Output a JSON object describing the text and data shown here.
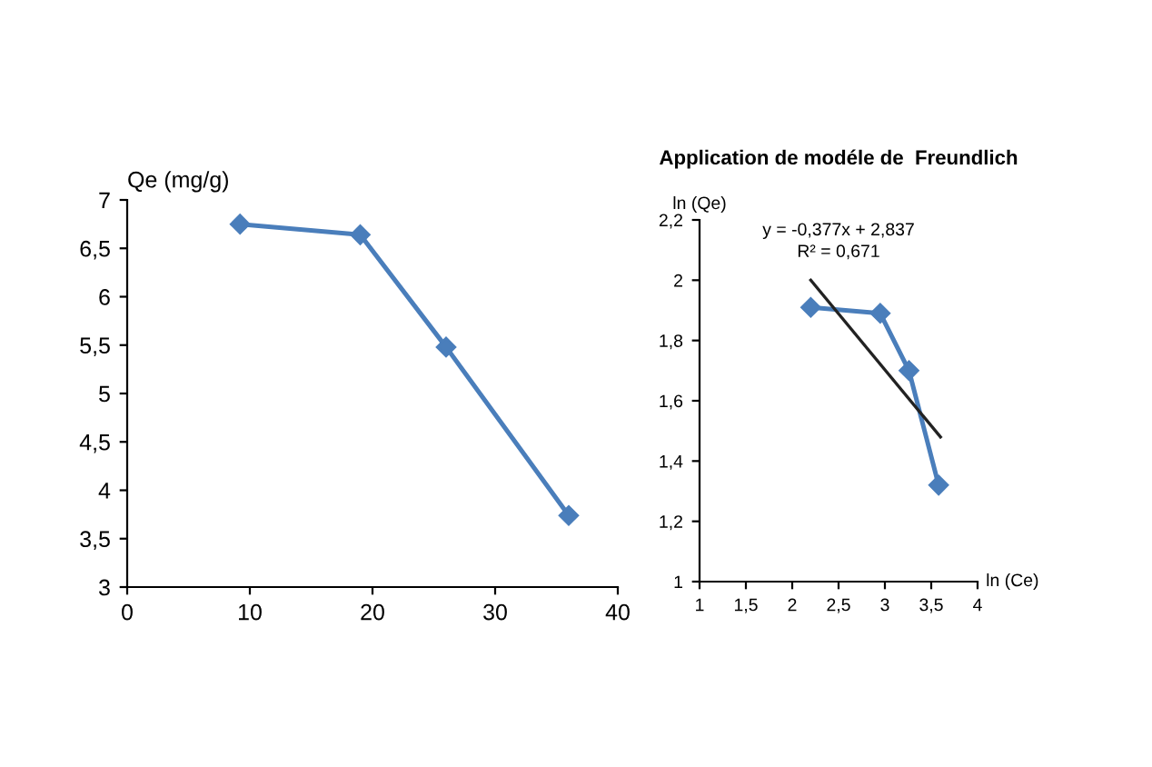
{
  "chart_data": [
    {
      "type": "line",
      "ylabel": "Qe (mg/g)",
      "marker": "diamond",
      "grid": false,
      "legend": false,
      "series": [
        {
          "color": "#4a7ebb",
          "x": [
            9.2,
            19,
            26,
            36
          ],
          "values": [
            6.75,
            6.64,
            5.48,
            3.74
          ]
        }
      ],
      "xlim": [
        0,
        40
      ],
      "xticks": [
        0,
        10,
        20,
        30,
        40
      ],
      "ylim": [
        3,
        7
      ],
      "yticks": [
        3,
        {
          "value": 3.5,
          "label": "3,5"
        },
        4,
        {
          "value": 4.5,
          "label": "4,5"
        },
        5,
        {
          "value": 5.5,
          "label": "5,5"
        },
        6,
        {
          "value": 6.5,
          "label": "6,5"
        },
        7
      ]
    },
    {
      "type": "line",
      "title": "Application de modéle de  Freundlich",
      "ylabel": "ln (Qe)",
      "xlabel": "ln (Ce)",
      "grid": false,
      "legend": false,
      "series": [
        {
          "color": "#4a7ebb",
          "marker": "diamond",
          "x": [
            2.2,
            2.95,
            3.26,
            3.58
          ],
          "values": [
            1.91,
            1.89,
            1.7,
            1.32
          ]
        },
        {
          "color": "#222222",
          "marker": "none",
          "x": [
            2.2,
            3.6
          ],
          "values": [
            2.0,
            1.48
          ]
        }
      ],
      "annotations": [
        "y = -0,377x + 2,837",
        "R² = 0,671"
      ],
      "xlim": [
        1,
        4
      ],
      "xticks": [
        1,
        {
          "value": 1.5,
          "label": "1,5"
        },
        2,
        {
          "value": 2.5,
          "label": "2,5"
        },
        3,
        {
          "value": 3.5,
          "label": "3,5"
        },
        4
      ],
      "ylim": [
        1,
        2.2
      ],
      "yticks": [
        1,
        {
          "value": 1.2,
          "label": "1,2"
        },
        {
          "value": 1.4,
          "label": "1,4"
        },
        {
          "value": 1.6,
          "label": "1,6"
        },
        {
          "value": 1.8,
          "label": "1,8"
        },
        2,
        {
          "value": 2.2,
          "label": "2,2"
        }
      ]
    }
  ]
}
